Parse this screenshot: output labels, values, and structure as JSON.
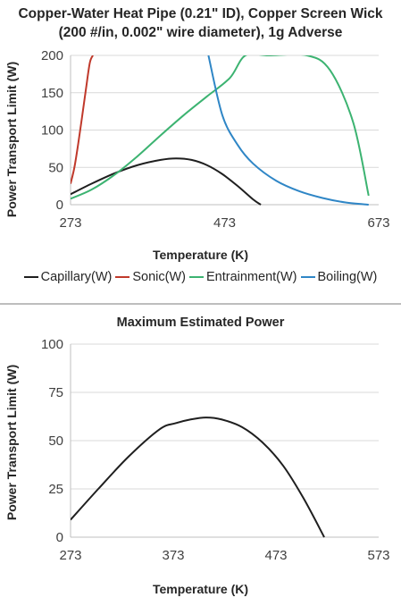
{
  "chart_data": [
    {
      "type": "line",
      "title_line1": "Copper-Water Heat Pipe (0.21\" ID), Copper Screen Wick",
      "title_line2": "(200 #/in, 0.002\" wire diameter), 1g Adverse",
      "xlabel": "Temperature (K)",
      "ylabel": "Power Transport Limit (W)",
      "xlim": [
        273,
        673
      ],
      "ylim": [
        0,
        200
      ],
      "xticks": [
        "273",
        "473",
        "673"
      ],
      "yticks": [
        "0",
        "50",
        "100",
        "150",
        "200"
      ],
      "grid": "horizontal",
      "legend_position": "bottom",
      "series": [
        {
          "name": "Capillary(W)",
          "color": "#1f1f1f",
          "x": [
            273,
            300,
            330,
            360,
            390,
            410,
            430,
            450,
            470,
            490,
            510,
            520
          ],
          "y": [
            14,
            28,
            42,
            53,
            60,
            62,
            60,
            53,
            41,
            25,
            7,
            0
          ]
        },
        {
          "name": "Sonic(W)",
          "color": "#c0392b",
          "x": [
            273,
            278,
            283,
            288,
            293,
            298,
            302
          ],
          "y": [
            28,
            50,
            82,
            118,
            155,
            190,
            200
          ]
        },
        {
          "name": "Entrainment(W)",
          "color": "#3cb371",
          "x": [
            273,
            300,
            330,
            360,
            390,
            420,
            450,
            480,
            500,
            530,
            580,
            610,
            640,
            660
          ],
          "y": [
            8,
            20,
            40,
            65,
            93,
            120,
            145,
            170,
            200,
            200,
            200,
            180,
            110,
            12
          ]
        },
        {
          "name": "Boiling(W)",
          "color": "#2f86c6",
          "x": [
            452,
            470,
            490,
            510,
            540,
            570,
            600,
            630,
            660
          ],
          "y": [
            200,
            120,
            80,
            55,
            32,
            18,
            9,
            3,
            0
          ]
        }
      ]
    },
    {
      "type": "line",
      "title": "Maximum Estimated Power",
      "xlabel": "Temperature (K)",
      "ylabel": "Power Transport Limit (W)",
      "xlim": [
        273,
        573
      ],
      "ylim": [
        0,
        100
      ],
      "xticks": [
        "273",
        "373",
        "473",
        "573"
      ],
      "yticks": [
        "0",
        "25",
        "50",
        "75",
        "100"
      ],
      "grid": "horizontal",
      "series": [
        {
          "color": "#1f1f1f",
          "x": [
            273,
            300,
            330,
            360,
            375,
            390,
            405,
            420,
            440,
            460,
            480,
            500,
            520
          ],
          "y": [
            9,
            25,
            42,
            56,
            59,
            61,
            62,
            61,
            57,
            49,
            37,
            20,
            0
          ]
        }
      ]
    }
  ]
}
